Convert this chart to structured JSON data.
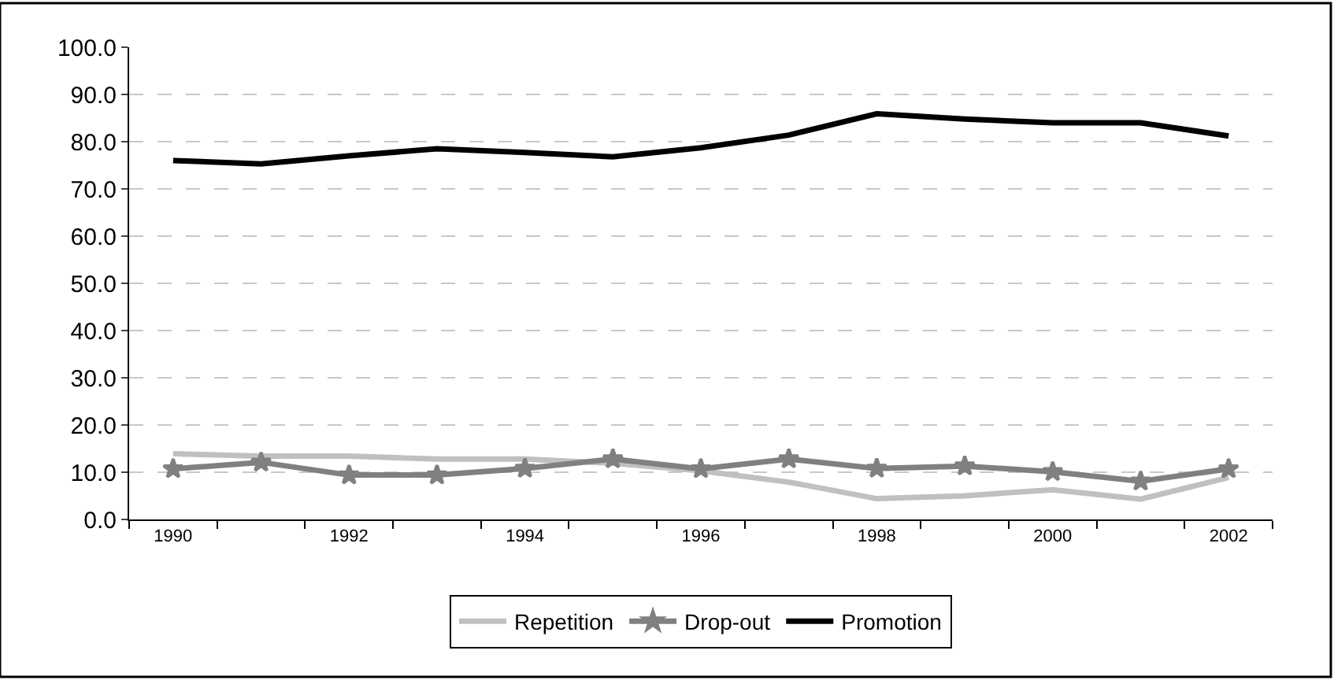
{
  "chart_data": {
    "type": "line",
    "categories": [
      "1990",
      null,
      "1992",
      null,
      "1994",
      null,
      "1996",
      null,
      "1998",
      null,
      "2000",
      null,
      "2002"
    ],
    "series": [
      {
        "name": "Repetition",
        "color": "#c0c0c0",
        "marker": "none",
        "values": [
          13.9,
          13.4,
          13.4,
          12.8,
          12.8,
          11.9,
          10.3,
          7.9,
          4.4,
          5.0,
          6.3,
          4.3,
          8.9
        ]
      },
      {
        "name": "Drop-out",
        "color": "#808080",
        "marker": "star",
        "values": [
          10.7,
          12.1,
          9.4,
          9.4,
          10.8,
          12.8,
          10.7,
          12.8,
          10.8,
          11.3,
          10.1,
          8.1,
          10.7
        ]
      },
      {
        "name": "Promotion",
        "color": "#000000",
        "marker": "none",
        "values": [
          76.0,
          75.3,
          77.0,
          78.5,
          77.7,
          76.8,
          78.7,
          81.4,
          85.9,
          84.8,
          84.0,
          84.0,
          81.2
        ]
      }
    ],
    "ylim": [
      0,
      100
    ],
    "yticks": [
      {
        "value": 0,
        "label": "0.0"
      },
      {
        "value": 10,
        "label": "10.0"
      },
      {
        "value": 20,
        "label": "20.0"
      },
      {
        "value": 30,
        "label": "30.0"
      },
      {
        "value": 40,
        "label": "40.0"
      },
      {
        "value": 50,
        "label": "50.0"
      },
      {
        "value": 60,
        "label": "60.0"
      },
      {
        "value": 70,
        "label": "70.0"
      },
      {
        "value": 80,
        "label": "80.0"
      },
      {
        "value": 90,
        "label": "90.0"
      },
      {
        "value": 100,
        "label": "100.0"
      }
    ],
    "grid": "y",
    "legend": "bottom",
    "line_style": "solid"
  }
}
